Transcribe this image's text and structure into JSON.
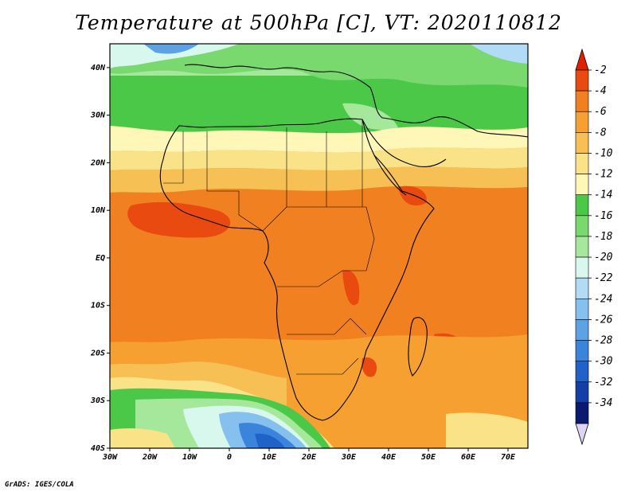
{
  "title": "Temperature at 500hPa [C], VT: 2020110812",
  "credit": "GrADS: IGES/COLA",
  "map": {
    "lon_range": [
      -30,
      75
    ],
    "lat_range": [
      -40,
      45
    ],
    "lon_ticks": [
      {
        "value": -30,
        "label": "30W"
      },
      {
        "value": -20,
        "label": "20W"
      },
      {
        "value": -10,
        "label": "10W"
      },
      {
        "value": 0,
        "label": "0"
      },
      {
        "value": 10,
        "label": "10E"
      },
      {
        "value": 20,
        "label": "20E"
      },
      {
        "value": 30,
        "label": "30E"
      },
      {
        "value": 40,
        "label": "40E"
      },
      {
        "value": 50,
        "label": "50E"
      },
      {
        "value": 60,
        "label": "60E"
      },
      {
        "value": 70,
        "label": "70E"
      }
    ],
    "lat_ticks": [
      {
        "value": 40,
        "label": "40N"
      },
      {
        "value": 30,
        "label": "30N"
      },
      {
        "value": 20,
        "label": "20N"
      },
      {
        "value": 10,
        "label": "10N"
      },
      {
        "value": 0,
        "label": "EQ"
      },
      {
        "value": -10,
        "label": "10S"
      },
      {
        "value": -20,
        "label": "20S"
      },
      {
        "value": -30,
        "label": "30S"
      },
      {
        "value": -40,
        "label": "40S"
      }
    ]
  },
  "colorbar": {
    "labels": [
      "-2",
      "-4",
      "-6",
      "-8",
      "-10",
      "-12",
      "-14",
      "-16",
      "-18",
      "-20",
      "-22",
      "-24",
      "-26",
      "-28",
      "-30",
      "-32",
      "-34"
    ],
    "colors": [
      "#e84a10",
      "#f08020",
      "#f5a030",
      "#f7c055",
      "#fae288",
      "#fef7b8",
      "#4cc848",
      "#79d96e",
      "#a5e89b",
      "#d8f8ee",
      "#b2dcf6",
      "#86c0ee",
      "#5ea2e6",
      "#3a84dc",
      "#2062c8",
      "#1440a6",
      "#0a1a70"
    ],
    "over_color": "#e02000",
    "under_color": "#dcd4f2"
  }
}
